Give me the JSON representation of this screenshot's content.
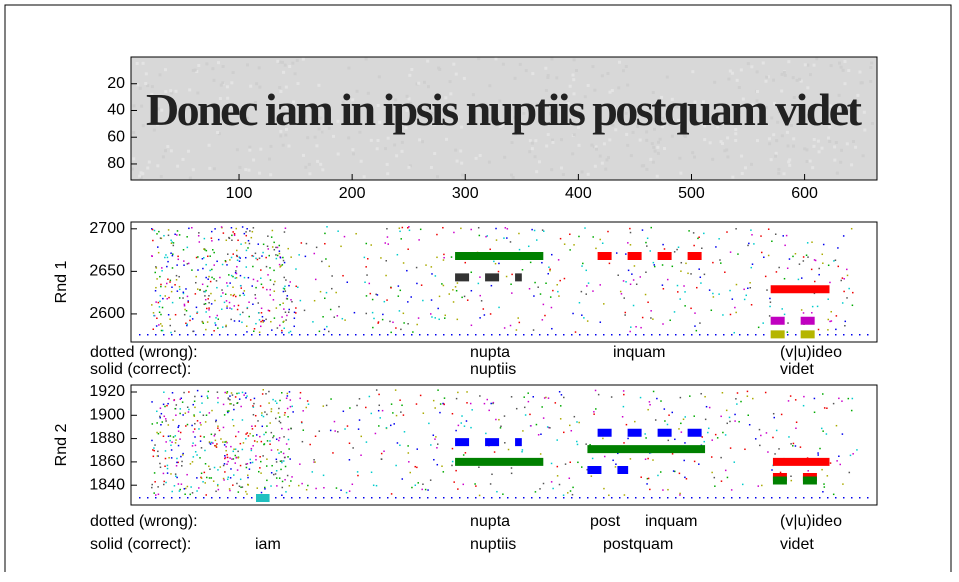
{
  "chart_data": [
    {
      "type": "image",
      "image_text": "Donec iam in ipsis nuptiis postquam videt",
      "xlim": [
        4.5,
        664
      ],
      "xticks": [
        100,
        200,
        300,
        400,
        500,
        600
      ],
      "ylim": [
        0,
        92
      ],
      "yticks": [
        20,
        40,
        60,
        80
      ]
    },
    {
      "type": "segments",
      "ylabel": "Rnd 1",
      "xlim": [
        4.5,
        664
      ],
      "ylim": [
        2567,
        2708
      ],
      "yticks": [
        2600,
        2650,
        2700
      ],
      "segments": [
        {
          "style": "solid",
          "color": "#008000",
          "x": [
            291,
            369
          ],
          "y": 2668
        },
        {
          "style": "dotted",
          "color": "#333333",
          "x": [
            291,
            350
          ],
          "y": 2643
        },
        {
          "style": "dotted",
          "color": "#ff0000",
          "x": [
            417,
            512
          ],
          "y": 2668
        },
        {
          "style": "solid",
          "color": "#ff0000",
          "x": [
            570,
            622
          ],
          "y": 2629
        },
        {
          "style": "dotted",
          "color": "#c000c0",
          "x": [
            570,
            614
          ],
          "y": 2592
        },
        {
          "style": "dotted",
          "color": "#b5b500",
          "x": [
            570,
            614
          ],
          "y": 2576
        }
      ],
      "dotted_label": "dotted (wrong):",
      "dotted_words": [
        "nupta",
        "inquam",
        "(v|u)ideo"
      ],
      "solid_label": "solid (correct):",
      "solid_words": [
        "nuptiis",
        "videt"
      ]
    },
    {
      "type": "segments",
      "ylabel": "Rnd 2",
      "xlim": [
        4.5,
        664
      ],
      "ylim": [
        1823,
        1926
      ],
      "yticks": [
        1840,
        1860,
        1880,
        1900,
        1920
      ],
      "segments": [
        {
          "style": "dotted",
          "color": "#0000ff",
          "x": [
            291,
            350
          ],
          "y": 1877
        },
        {
          "style": "solid",
          "color": "#008000",
          "x": [
            291,
            369
          ],
          "y": 1860
        },
        {
          "style": "dotted",
          "color": "#0000ff",
          "x": [
            408,
            444
          ],
          "y": 1853
        },
        {
          "style": "solid",
          "color": "#008000",
          "x": [
            408,
            512
          ],
          "y": 1871
        },
        {
          "style": "dotted",
          "color": "#0000ff",
          "x": [
            417,
            512
          ],
          "y": 1885
        },
        {
          "style": "solid",
          "color": "#ff0000",
          "x": [
            572,
            622
          ],
          "y": 1860
        },
        {
          "style": "dotted",
          "color": "#ff0000",
          "x": [
            572,
            614
          ],
          "y": 1847
        },
        {
          "style": "dotted",
          "color": "#008000",
          "x": [
            572,
            614
          ],
          "y": 1844
        },
        {
          "style": "solid",
          "color": "#20c0c0",
          "x": [
            115,
            127
          ],
          "y": 1829
        }
      ],
      "dotted_label": "dotted (wrong):",
      "dotted_words": [
        "nupta",
        "post",
        "inquam",
        "(v|u)ideo"
      ],
      "solid_label": "solid (correct):",
      "solid_words": [
        "iam",
        "nuptiis",
        "postquam",
        "videt"
      ]
    }
  ]
}
